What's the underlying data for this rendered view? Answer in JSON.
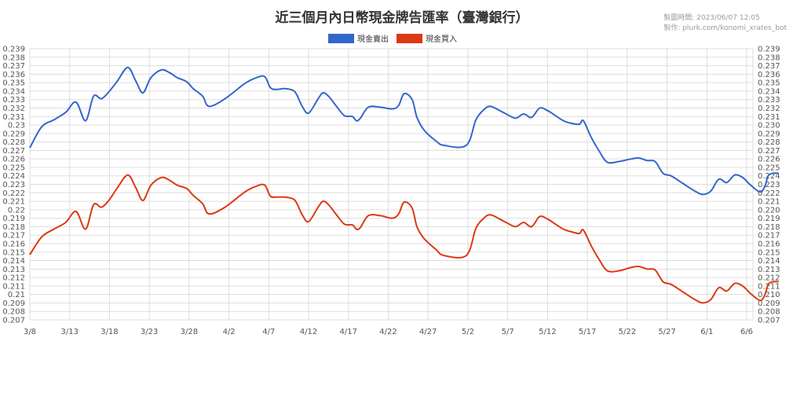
{
  "meta": {
    "timestamp": "製圖時間: 2023/06/07 12:05",
    "credit": "製作: plurk.com/konomi_xrates_bot"
  },
  "chart_data": {
    "type": "line",
    "title": "近三個月內日幣現金牌告匯率（臺灣銀行）",
    "xlabel": "",
    "ylabel": "",
    "ylim": [
      0.207,
      0.239
    ],
    "y_ticks": [
      "0.207",
      "0.208",
      "0.209",
      "0.21",
      "0.211",
      "0.212",
      "0.213",
      "0.214",
      "0.215",
      "0.216",
      "0.217",
      "0.218",
      "0.219",
      "0.22",
      "0.221",
      "0.222",
      "0.223",
      "0.224",
      "0.225",
      "0.226",
      "0.227",
      "0.228",
      "0.229",
      "0.23",
      "0.231",
      "0.232",
      "0.233",
      "0.234",
      "0.235",
      "0.236",
      "0.237",
      "0.238",
      "0.239"
    ],
    "y_ticks_right": [
      "0.207",
      "0.208",
      "0.209",
      "0.210",
      "0.211",
      "0.212",
      "0.213",
      "0.214",
      "0.215",
      "0.216",
      "0.217",
      "0.218",
      "0.219",
      "0.220",
      "0.221",
      "0.222",
      "0.223",
      "0.224",
      "0.225",
      "0.226",
      "0.227",
      "0.228",
      "0.229",
      "0.230",
      "0.231",
      "0.232",
      "0.233",
      "0.234",
      "0.235",
      "0.236",
      "0.237",
      "0.238",
      "0.239"
    ],
    "x_ticks": [
      "3/8",
      "3/13",
      "3/18",
      "3/23",
      "3/28",
      "4/2",
      "4/7",
      "4/12",
      "4/17",
      "4/22",
      "4/27",
      "5/2",
      "5/7",
      "5/12",
      "5/17",
      "5/22",
      "5/27",
      "6/1",
      "6/6"
    ],
    "grid": true,
    "legend_position": "top-center",
    "series": [
      {
        "name": "現金賣出",
        "color": "#3366cc",
        "points": [
          [
            0,
            0.2273
          ],
          [
            1.5,
            0.2298
          ],
          [
            3,
            0.2306
          ],
          [
            4.5,
            0.2315
          ],
          [
            5.8,
            0.2327
          ],
          [
            7,
            0.2305
          ],
          [
            8,
            0.2334
          ],
          [
            9,
            0.2331
          ],
          [
            10,
            0.234
          ],
          [
            11,
            0.2352
          ],
          [
            12.3,
            0.2368
          ],
          [
            13.3,
            0.2352
          ],
          [
            14.2,
            0.2338
          ],
          [
            15.2,
            0.2356
          ],
          [
            16.5,
            0.2365
          ],
          [
            17.5,
            0.2362
          ],
          [
            18.5,
            0.2356
          ],
          [
            19.7,
            0.2351
          ],
          [
            20.5,
            0.2343
          ],
          [
            21.7,
            0.2334
          ],
          [
            22.5,
            0.2322
          ],
          [
            24.5,
            0.2331
          ],
          [
            27,
            0.2349
          ],
          [
            28.5,
            0.2356
          ],
          [
            29.5,
            0.2357
          ],
          [
            30.2,
            0.2344
          ],
          [
            31,
            0.2342
          ],
          [
            32,
            0.2343
          ],
          [
            33,
            0.2341
          ],
          [
            33.5,
            0.2336
          ],
          [
            34.2,
            0.2322
          ],
          [
            35,
            0.2314
          ],
          [
            36.2,
            0.2331
          ],
          [
            36.8,
            0.2338
          ],
          [
            37.5,
            0.2334
          ],
          [
            38.5,
            0.2322
          ],
          [
            39.5,
            0.2311
          ],
          [
            40.5,
            0.231
          ],
          [
            41,
            0.2305
          ],
          [
            41.5,
            0.2308
          ],
          [
            42.5,
            0.2321
          ],
          [
            44,
            0.2321
          ],
          [
            45.5,
            0.2319
          ],
          [
            46.3,
            0.2323
          ],
          [
            47,
            0.2337
          ],
          [
            48,
            0.233
          ],
          [
            48.6,
            0.2309
          ],
          [
            49.5,
            0.2294
          ],
          [
            51,
            0.2281
          ],
          [
            52,
            0.2276
          ],
          [
            54.8,
            0.2276
          ],
          [
            56,
            0.2306
          ],
          [
            57,
            0.2318
          ],
          [
            57.8,
            0.2322
          ],
          [
            59,
            0.2317
          ],
          [
            60,
            0.2312
          ],
          [
            61,
            0.2308
          ],
          [
            62,
            0.2313
          ],
          [
            63,
            0.2309
          ],
          [
            64,
            0.232
          ],
          [
            65,
            0.2317
          ],
          [
            66,
            0.2311
          ],
          [
            67,
            0.2305
          ],
          [
            68,
            0.2302
          ],
          [
            69,
            0.2301
          ],
          [
            69.5,
            0.2305
          ],
          [
            70.5,
            0.2285
          ],
          [
            71.5,
            0.2269
          ],
          [
            72.5,
            0.2256
          ],
          [
            74,
            0.2257
          ],
          [
            75.5,
            0.226
          ],
          [
            76.5,
            0.2261
          ],
          [
            77.5,
            0.2258
          ],
          [
            78.5,
            0.2257
          ],
          [
            79.5,
            0.2243
          ],
          [
            80.5,
            0.224
          ],
          [
            82,
            0.2231
          ],
          [
            83.5,
            0.2222
          ],
          [
            84.5,
            0.2218
          ],
          [
            85.5,
            0.2222
          ],
          [
            86.5,
            0.2236
          ],
          [
            87.5,
            0.2232
          ],
          [
            88.5,
            0.2241
          ],
          [
            89.5,
            0.2238
          ],
          [
            90.5,
            0.2229
          ],
          [
            91.7,
            0.2221
          ],
          [
            92.3,
            0.2228
          ],
          [
            92.7,
            0.224
          ],
          [
            93.3,
            0.2243
          ],
          [
            94,
            0.2243
          ]
        ]
      },
      {
        "name": "現金買入",
        "color": "#dc3912",
        "points": [
          [
            0,
            0.2147
          ],
          [
            1.5,
            0.2168
          ],
          [
            3,
            0.2177
          ],
          [
            4.5,
            0.2185
          ],
          [
            5.8,
            0.2198
          ],
          [
            7,
            0.2177
          ],
          [
            8,
            0.2206
          ],
          [
            9,
            0.2203
          ],
          [
            10,
            0.2212
          ],
          [
            11,
            0.2226
          ],
          [
            12.3,
            0.2241
          ],
          [
            13.3,
            0.2226
          ],
          [
            14.2,
            0.2211
          ],
          [
            15.2,
            0.2229
          ],
          [
            16.5,
            0.2238
          ],
          [
            17.5,
            0.2235
          ],
          [
            18.5,
            0.2229
          ],
          [
            19.7,
            0.2225
          ],
          [
            20.5,
            0.2217
          ],
          [
            21.7,
            0.2207
          ],
          [
            22.5,
            0.2195
          ],
          [
            24.5,
            0.2203
          ],
          [
            27,
            0.2221
          ],
          [
            28.5,
            0.2228
          ],
          [
            29.5,
            0.2229
          ],
          [
            30.2,
            0.2216
          ],
          [
            31,
            0.2215
          ],
          [
            32,
            0.2215
          ],
          [
            33,
            0.2213
          ],
          [
            33.5,
            0.2208
          ],
          [
            34.2,
            0.2194
          ],
          [
            35,
            0.2186
          ],
          [
            36.2,
            0.2203
          ],
          [
            36.8,
            0.221
          ],
          [
            37.5,
            0.2206
          ],
          [
            38.5,
            0.2194
          ],
          [
            39.5,
            0.2183
          ],
          [
            40.5,
            0.2182
          ],
          [
            41,
            0.2177
          ],
          [
            41.5,
            0.2179
          ],
          [
            42.5,
            0.2193
          ],
          [
            44,
            0.2193
          ],
          [
            45.5,
            0.219
          ],
          [
            46.3,
            0.2195
          ],
          [
            47,
            0.2209
          ],
          [
            48,
            0.2202
          ],
          [
            48.6,
            0.218
          ],
          [
            49.5,
            0.2166
          ],
          [
            51,
            0.2153
          ],
          [
            52,
            0.2146
          ],
          [
            54.8,
            0.2146
          ],
          [
            56,
            0.2178
          ],
          [
            57,
            0.219
          ],
          [
            57.8,
            0.2194
          ],
          [
            59,
            0.2189
          ],
          [
            60,
            0.2184
          ],
          [
            61,
            0.218
          ],
          [
            62,
            0.2185
          ],
          [
            63,
            0.218
          ],
          [
            64,
            0.2192
          ],
          [
            65,
            0.2189
          ],
          [
            66,
            0.2183
          ],
          [
            67,
            0.2177
          ],
          [
            68,
            0.2174
          ],
          [
            69,
            0.2172
          ],
          [
            69.5,
            0.2176
          ],
          [
            70.5,
            0.2157
          ],
          [
            71.5,
            0.2141
          ],
          [
            72.5,
            0.2128
          ],
          [
            74,
            0.2128
          ],
          [
            75.5,
            0.2132
          ],
          [
            76.5,
            0.2133
          ],
          [
            77.5,
            0.213
          ],
          [
            78.5,
            0.2129
          ],
          [
            79.5,
            0.2115
          ],
          [
            80.5,
            0.2112
          ],
          [
            82,
            0.2103
          ],
          [
            83.5,
            0.2094
          ],
          [
            84.5,
            0.209
          ],
          [
            85.5,
            0.2094
          ],
          [
            86.5,
            0.2108
          ],
          [
            87.5,
            0.2104
          ],
          [
            88.5,
            0.2113
          ],
          [
            89.5,
            0.211
          ],
          [
            90.5,
            0.2101
          ],
          [
            91.7,
            0.2093
          ],
          [
            92.3,
            0.21
          ],
          [
            92.7,
            0.2112
          ],
          [
            93.3,
            0.2115
          ],
          [
            94,
            0.2115
          ]
        ]
      }
    ]
  }
}
